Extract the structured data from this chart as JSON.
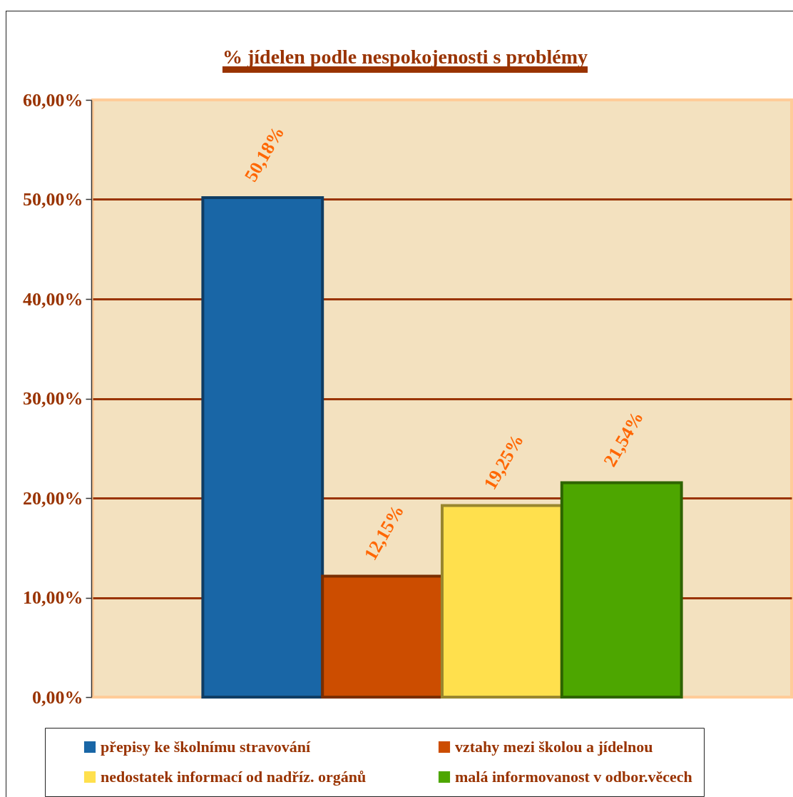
{
  "chart_data": {
    "type": "bar",
    "title": "% jídelen podle nespokojenosti s problémy",
    "categories": [
      null
    ],
    "series": [
      {
        "name": "přepisy ke školnímu stravování",
        "color": "#1966a6",
        "values": [
          50.18
        ],
        "value_labels": [
          "50,18%"
        ]
      },
      {
        "name": "vztahy mezi školou a jídelnou",
        "color": "#cc4d00",
        "values": [
          12.15
        ],
        "value_labels": [
          "12,15%"
        ]
      },
      {
        "name": "nedostatek informací od nadříz. orgánů",
        "color": "#ffe04d",
        "values": [
          19.25
        ],
        "value_labels": [
          "19,25%"
        ]
      },
      {
        "name": "malá informovanost v odbor.věcech",
        "color": "#4da600",
        "values": [
          21.54
        ],
        "value_labels": [
          "21,54%"
        ]
      }
    ],
    "ylim": [
      0,
      60
    ],
    "yticks": [
      {
        "value": 0,
        "label": "0,00%"
      },
      {
        "value": 10,
        "label": "10,00%"
      },
      {
        "value": 20,
        "label": "20,00%"
      },
      {
        "value": 30,
        "label": "30,00%"
      },
      {
        "value": 40,
        "label": "40,00%"
      },
      {
        "value": 50,
        "label": "50,00%"
      },
      {
        "value": 60,
        "label": "60,00%"
      }
    ],
    "grid": "y",
    "legend": "bottom",
    "tick_labels": "y"
  }
}
